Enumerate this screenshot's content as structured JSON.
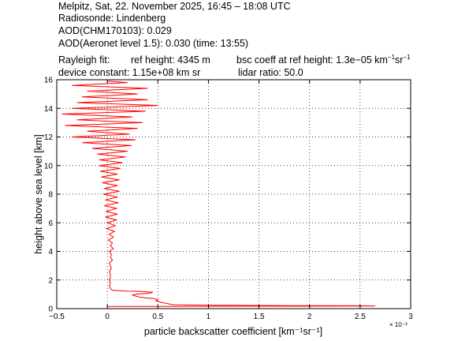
{
  "header": {
    "line1": "Melpitz, Sat, 22. November 2025, 16:45 – 18:08 UTC",
    "line2": "Radiosonde: Lindenberg",
    "line3": "AOD(CHM170103): 0.029",
    "line4": "AOD(Aeronet level 1.5): 0.030   (time: 13:55)",
    "rayleigh_label": "Rayleigh fit:",
    "ref_height": "ref height: 4345 m",
    "bsc_prefix": "bsc coeff at ref height: 1.3e−05 km",
    "bsc_unit_exp1": "−1",
    "bsc_unit_mid": "sr",
    "bsc_unit_exp2": "−1",
    "device_constant": "device constant: 1.15e+08 km sr",
    "lidar_ratio": "lidar ratio: 50.0"
  },
  "chart_data": {
    "type": "line",
    "xlabel": "particle backscatter coefficient [km⁻¹sr⁻¹]",
    "ylabel": "height above sea level [km]",
    "x_multiplier": "× 10⁻³",
    "xlim": [
      -0.5,
      3
    ],
    "ylim": [
      0,
      16
    ],
    "xticks": [
      "−0.5",
      "0",
      "0.5",
      "1",
      "1.5",
      "2",
      "2.5",
      "3"
    ],
    "yticks": [
      "0",
      "2",
      "4",
      "6",
      "8",
      "10",
      "12",
      "14",
      "16"
    ],
    "grid": "dotted",
    "line_color": "#ff0000",
    "series": [
      {
        "points": [
          [
            0.0,
            0.15
          ],
          [
            0.4,
            0.15
          ],
          [
            0.9,
            0.16
          ],
          [
            1.4,
            0.17
          ],
          [
            1.9,
            0.17
          ],
          [
            2.3,
            0.18
          ],
          [
            2.65,
            0.19
          ],
          [
            2.5,
            0.2
          ],
          [
            1.8,
            0.21
          ],
          [
            1.0,
            0.24
          ],
          [
            0.65,
            0.27
          ],
          [
            0.6,
            0.35
          ],
          [
            0.52,
            0.45
          ],
          [
            0.48,
            0.55
          ],
          [
            0.5,
            0.62
          ],
          [
            0.46,
            0.7
          ],
          [
            0.38,
            0.75
          ],
          [
            0.32,
            0.8
          ],
          [
            0.28,
            0.88
          ],
          [
            0.25,
            0.95
          ],
          [
            0.3,
            1.02
          ],
          [
            0.42,
            1.08
          ],
          [
            0.45,
            1.15
          ],
          [
            0.34,
            1.2
          ],
          [
            0.2,
            1.22
          ],
          [
            0.12,
            1.25
          ],
          [
            0.05,
            1.28
          ],
          [
            0.03,
            1.4
          ],
          [
            0.02,
            1.6
          ],
          [
            0.03,
            1.8
          ],
          [
            0.02,
            2.0
          ],
          [
            0.03,
            2.2
          ],
          [
            0.03,
            2.4
          ],
          [
            0.02,
            2.6
          ],
          [
            0.04,
            2.8
          ],
          [
            0.03,
            3.0
          ],
          [
            0.02,
            3.2
          ],
          [
            0.05,
            3.4
          ],
          [
            0.03,
            3.6
          ],
          [
            0.04,
            3.8
          ],
          [
            0.02,
            4.0
          ],
          [
            0.06,
            4.2
          ],
          [
            0.03,
            4.4
          ],
          [
            0.05,
            4.6
          ],
          [
            0.01,
            4.8
          ],
          [
            0.06,
            5.0
          ],
          [
            0.02,
            5.2
          ],
          [
            0.07,
            5.4
          ],
          [
            -0.01,
            5.6
          ],
          [
            0.08,
            5.8
          ],
          [
            0.0,
            6.0
          ],
          [
            0.09,
            6.2
          ],
          [
            -0.02,
            6.4
          ],
          [
            0.1,
            6.6
          ],
          [
            -0.01,
            6.8
          ],
          [
            0.09,
            7.0
          ],
          [
            -0.03,
            7.2
          ],
          [
            0.11,
            7.4
          ],
          [
            -0.02,
            7.6
          ],
          [
            0.1,
            7.8
          ],
          [
            -0.04,
            8.0
          ],
          [
            0.12,
            8.2
          ],
          [
            -0.03,
            8.4
          ],
          [
            0.1,
            8.6
          ],
          [
            -0.05,
            8.8
          ],
          [
            0.12,
            9.0
          ],
          [
            -0.06,
            9.2
          ],
          [
            0.1,
            9.4
          ],
          [
            -0.07,
            9.6
          ],
          [
            0.13,
            9.8
          ],
          [
            -0.08,
            10.0
          ],
          [
            0.15,
            10.2
          ],
          [
            -0.08,
            10.4
          ],
          [
            0.18,
            10.6
          ],
          [
            -0.1,
            10.8
          ],
          [
            0.2,
            11.0
          ],
          [
            -0.15,
            11.2
          ],
          [
            0.24,
            11.4
          ],
          [
            -0.25,
            11.6
          ],
          [
            0.28,
            11.8
          ],
          [
            -0.35,
            12.0
          ],
          [
            0.22,
            12.2
          ],
          [
            -0.2,
            12.4
          ],
          [
            0.3,
            12.6
          ],
          [
            -0.42,
            12.8
          ],
          [
            0.35,
            13.0
          ],
          [
            -0.3,
            13.2
          ],
          [
            0.25,
            13.4
          ],
          [
            -0.45,
            13.6
          ],
          [
            0.38,
            13.8
          ],
          [
            -0.35,
            14.0
          ],
          [
            0.5,
            14.2
          ],
          [
            -0.3,
            14.4
          ],
          [
            0.4,
            14.6
          ],
          [
            -0.25,
            14.8
          ],
          [
            0.3,
            15.0
          ],
          [
            -0.2,
            15.2
          ],
          [
            0.4,
            15.4
          ],
          [
            -0.35,
            15.6
          ],
          [
            0.2,
            15.8
          ],
          [
            0.0,
            15.9
          ]
        ]
      }
    ]
  }
}
